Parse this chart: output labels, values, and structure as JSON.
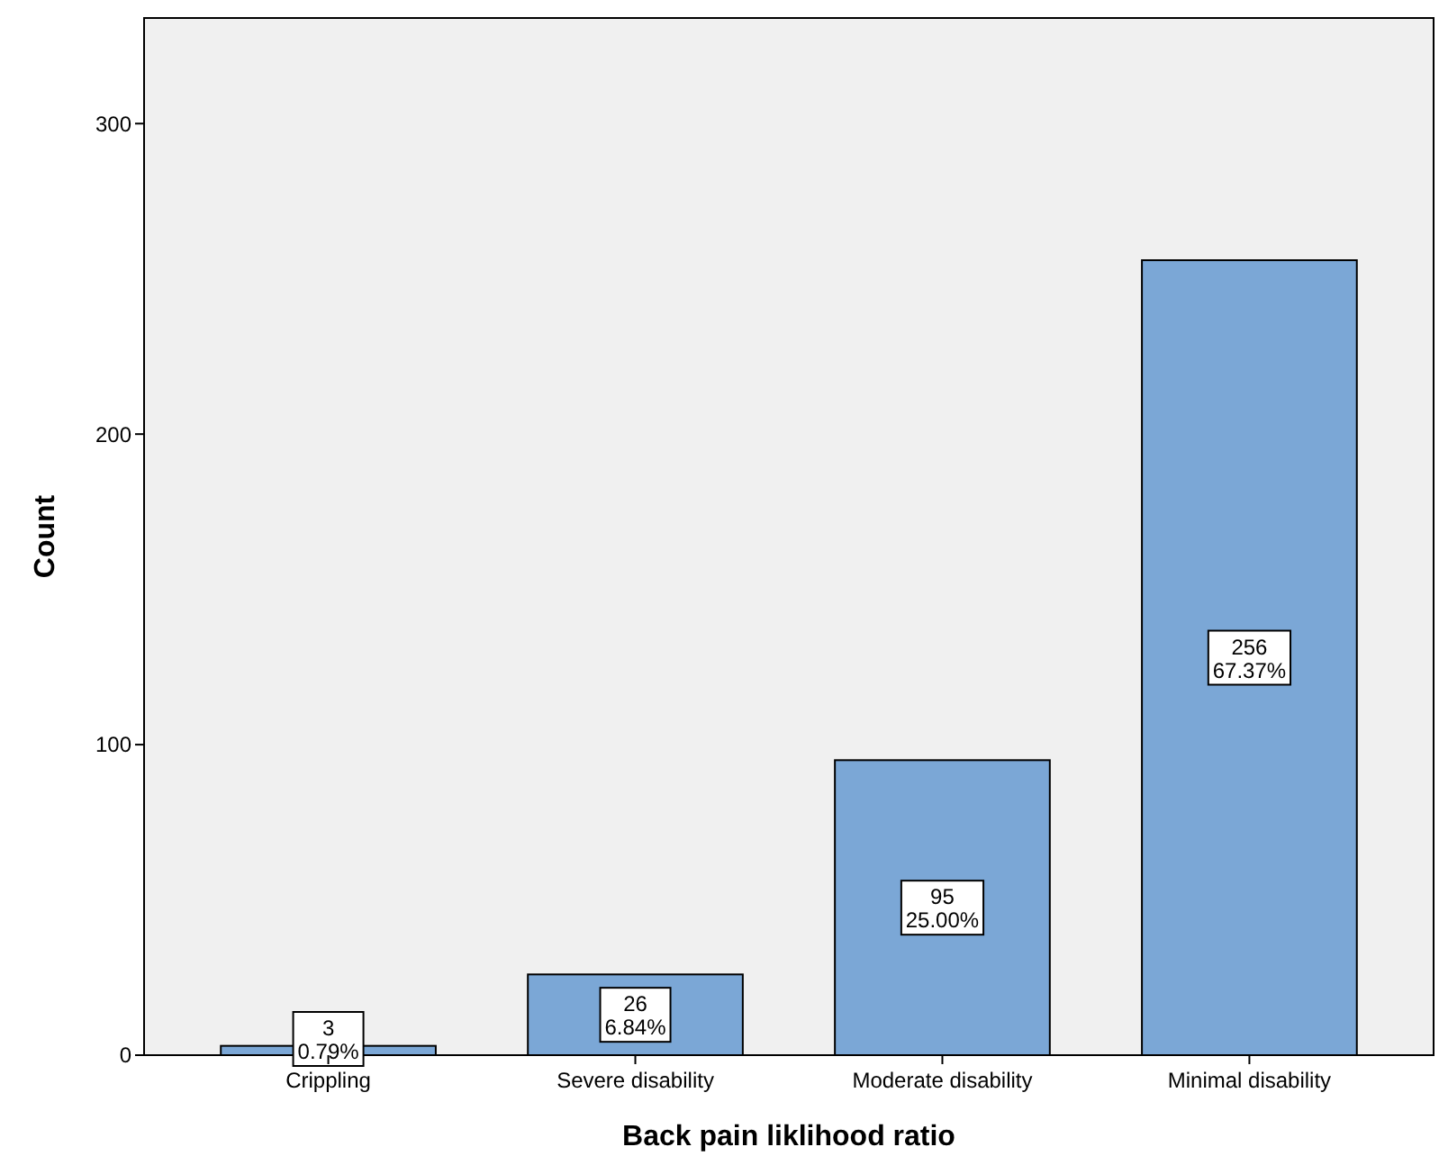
{
  "chart_data": {
    "type": "bar",
    "xlabel": "Back pain liklihood ratio",
    "ylabel": "Count",
    "categories": [
      "Crippling",
      "Severe disability",
      "Moderate disability",
      "Minimal disability"
    ],
    "values": [
      3,
      26,
      95,
      256
    ],
    "value_labels": [
      "3\n0.79%",
      "26\n6.84%",
      "95\n25.00%",
      "256\n67.37%"
    ],
    "color": "#7ba7d6",
    "ylim": [
      0,
      334
    ],
    "yticks": [
      0,
      100,
      200,
      300
    ],
    "grid": false
  }
}
